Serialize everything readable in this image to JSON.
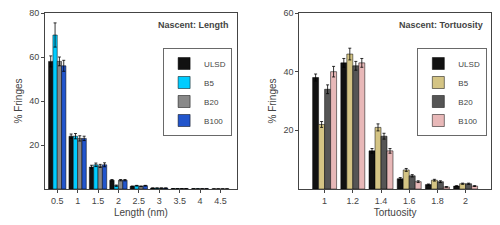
{
  "chart_data": [
    {
      "type": "bar",
      "title": "Nascent: Length",
      "xlabel": "Length (nm)",
      "ylabel": "% Fringes",
      "x": [
        0.5,
        1,
        1.5,
        2,
        2.5,
        3,
        3.5,
        4,
        4.5
      ],
      "xlim": [
        0.2,
        4.9
      ],
      "xticks": [
        0.5,
        1,
        1.5,
        2,
        2.5,
        3,
        3.5,
        4,
        4.5
      ],
      "ylim": [
        0,
        80
      ],
      "yticks": [
        20,
        40,
        60,
        80
      ],
      "grid": false,
      "legend": "right",
      "series": [
        {
          "name": "ULSD",
          "color": "#111111",
          "values": [
            58,
            24,
            10,
            4,
            1.2,
            0.4,
            0.15,
            0.08,
            0.03
          ],
          "errors": [
            2.5,
            1.0,
            0.8,
            0.3,
            0.15,
            0.08,
            0.04,
            0.03,
            0.01
          ]
        },
        {
          "name": "B5",
          "color": "#00ccff",
          "values": [
            70,
            24,
            11,
            1.5,
            1.5,
            0.4,
            0.15,
            0.08,
            0.03
          ],
          "errors": [
            5.5,
            1.2,
            0.8,
            0.3,
            0.15,
            0.08,
            0.04,
            0.03,
            0.01
          ]
        },
        {
          "name": "B20",
          "color": "#888888",
          "values": [
            58,
            23,
            10.5,
            4,
            1.2,
            0.4,
            0.15,
            0.08,
            0.03
          ],
          "errors": [
            2.0,
            1.2,
            0.7,
            0.3,
            0.15,
            0.08,
            0.04,
            0.03,
            0.01
          ]
        },
        {
          "name": "B100",
          "color": "#2255cc",
          "values": [
            56,
            23,
            11,
            4,
            1.5,
            0.4,
            0.15,
            0.08,
            0.03
          ],
          "errors": [
            2.5,
            1.0,
            0.9,
            0.3,
            0.15,
            0.08,
            0.04,
            0.03,
            0.01
          ]
        }
      ]
    },
    {
      "type": "bar",
      "title": "Nascent: Tortuosity",
      "xlabel": "Tortuosity",
      "ylabel": "% Fringes",
      "x": [
        1,
        1.2,
        1.4,
        1.6,
        1.8,
        2
      ],
      "xlim": [
        0.82,
        2.18
      ],
      "xticks": [
        1,
        1.2,
        1.4,
        1.6,
        1.8,
        2
      ],
      "ylim": [
        0,
        60
      ],
      "yticks": [
        20,
        40,
        60
      ],
      "grid": false,
      "legend": "right",
      "series": [
        {
          "name": "ULSD",
          "color": "#111111",
          "values": [
            38,
            43,
            13,
            3.5,
            1.5,
            1.0
          ],
          "errors": [
            1.2,
            1.5,
            0.8,
            0.4,
            0.2,
            0.15
          ]
        },
        {
          "name": "B5",
          "color": "#d4c484",
          "values": [
            22,
            46,
            21,
            6.5,
            3.0,
            1.8
          ],
          "errors": [
            1.0,
            2.0,
            1.2,
            0.5,
            0.3,
            0.2
          ]
        },
        {
          "name": "B20",
          "color": "#555555",
          "values": [
            34,
            42,
            18,
            4.5,
            2.5,
            1.8
          ],
          "errors": [
            1.5,
            1.5,
            1.0,
            0.4,
            0.3,
            0.2
          ]
        },
        {
          "name": "B100",
          "color": "#e8b8b8",
          "values": [
            40,
            43,
            13,
            2.5,
            0.7,
            1.0
          ],
          "errors": [
            1.8,
            1.5,
            0.8,
            0.3,
            0.12,
            0.15
          ]
        }
      ]
    }
  ]
}
